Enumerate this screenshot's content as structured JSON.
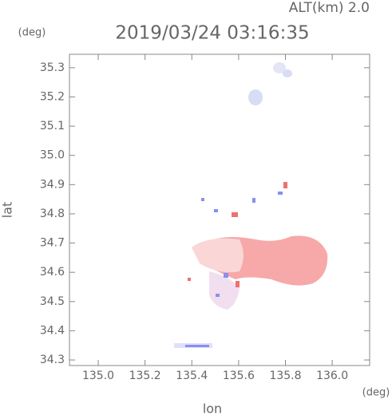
{
  "chart_data": {
    "type": "map",
    "title": "2019/03/24 03:16:35",
    "subtitle": "ALT(km) 2.0",
    "x_label": "lon",
    "y_label": "lat",
    "x_unit": "(deg)",
    "y_unit": "(deg)",
    "xlim": [
      134.877,
      136.16
    ],
    "ylim": [
      34.281,
      35.346
    ],
    "xticks": [
      {
        "value": 135,
        "label": "135.0"
      },
      135.2,
      135.4,
      135.6,
      135.8,
      {
        "value": 136,
        "label": "136.0"
      }
    ],
    "yticks": [
      34.3,
      34.4,
      34.5,
      34.6,
      34.7,
      34.8,
      34.9,
      {
        "value": 35,
        "label": "35.0"
      },
      35.1,
      35.2,
      35.3
    ]
  }
}
